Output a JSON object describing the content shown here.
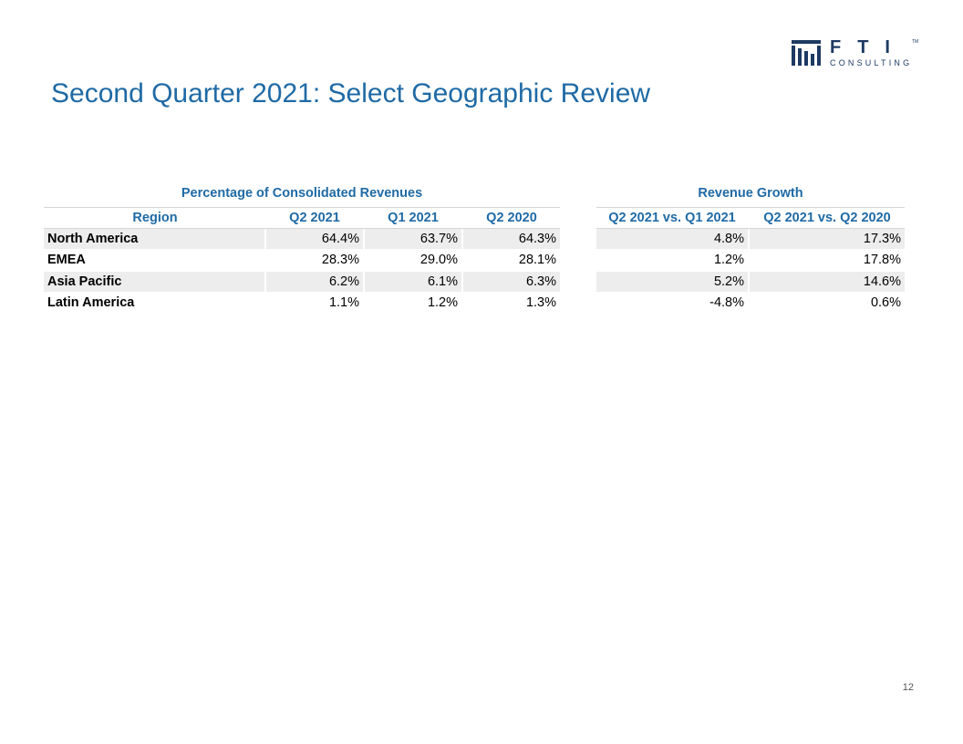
{
  "logo": {
    "icon": "fti-columns-logo",
    "wordmark": "FTI",
    "subtitle": "CONSULTING",
    "trademark": "TM",
    "color": "#1d3a63"
  },
  "page": {
    "title": "Second Quarter 2021: Select Geographic Review",
    "page_number": "12",
    "title_color": "#1f6aa5"
  },
  "left_table": {
    "group_title": "Percentage of Consolidated Revenues",
    "headers": [
      "Region",
      "Q2 2021",
      "Q1 2021",
      "Q2 2020"
    ],
    "rows": [
      {
        "region": "North America",
        "q2_2021": "64.4%",
        "q1_2021": "63.7%",
        "q2_2020": "64.3%"
      },
      {
        "region": "EMEA",
        "q2_2021": "28.3%",
        "q1_2021": "29.0%",
        "q2_2020": "28.1%"
      },
      {
        "region": "Asia Pacific",
        "q2_2021": "6.2%",
        "q1_2021": "6.1%",
        "q2_2020": "6.3%"
      },
      {
        "region": "Latin America",
        "q2_2021": "1.1%",
        "q1_2021": "1.2%",
        "q2_2020": "1.3%"
      }
    ]
  },
  "right_table": {
    "group_title": "Revenue Growth",
    "headers": [
      "Q2 2021 vs. Q1 2021",
      "Q2 2021 vs. Q2 2020"
    ],
    "rows": [
      {
        "vs_q1_2021": "4.8%",
        "vs_q2_2020": "17.3%"
      },
      {
        "vs_q1_2021": "1.2%",
        "vs_q2_2020": "17.8%"
      },
      {
        "vs_q1_2021": "5.2%",
        "vs_q2_2020": "14.6%"
      },
      {
        "vs_q1_2021": "-4.8%",
        "vs_q2_2020": "0.6%"
      }
    ]
  }
}
